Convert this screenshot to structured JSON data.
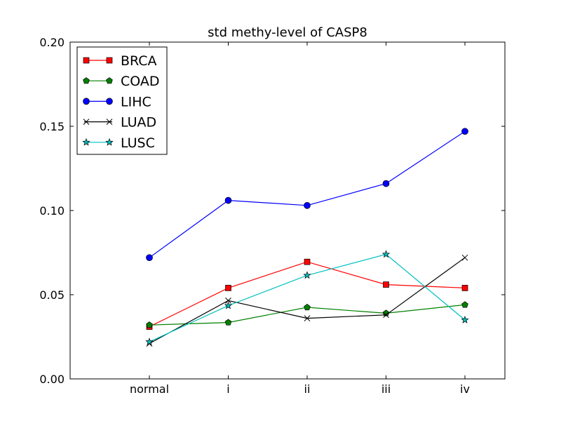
{
  "chart_data": {
    "type": "line",
    "title": "std methy-level of CASP8",
    "xlabel": "",
    "ylabel": "",
    "categories": [
      "normal",
      "i",
      "ii",
      "iii",
      "iv"
    ],
    "ylim": [
      0.0,
      0.2
    ],
    "yticks": [
      "0.00",
      "0.05",
      "0.10",
      "0.15",
      "0.20"
    ],
    "grid": false,
    "legend_position": "top-left",
    "series": [
      {
        "name": "BRCA",
        "color": "#ff0000",
        "marker": "square",
        "values": [
          0.031,
          0.054,
          0.0695,
          0.056,
          0.054
        ]
      },
      {
        "name": "COAD",
        "color": "#008000",
        "marker": "pentagon",
        "values": [
          0.032,
          0.0335,
          0.0425,
          0.039,
          0.044
        ]
      },
      {
        "name": "LIHC",
        "color": "#0000ff",
        "marker": "circle",
        "values": [
          0.072,
          0.106,
          0.103,
          0.116,
          0.147
        ]
      },
      {
        "name": "LUAD",
        "color": "#000000",
        "marker": "x",
        "values": [
          0.021,
          0.0465,
          0.036,
          0.038,
          0.072
        ]
      },
      {
        "name": "LUSC",
        "color": "#00bfbf",
        "marker": "star",
        "values": [
          0.022,
          0.0435,
          0.0615,
          0.074,
          0.035
        ]
      }
    ]
  }
}
